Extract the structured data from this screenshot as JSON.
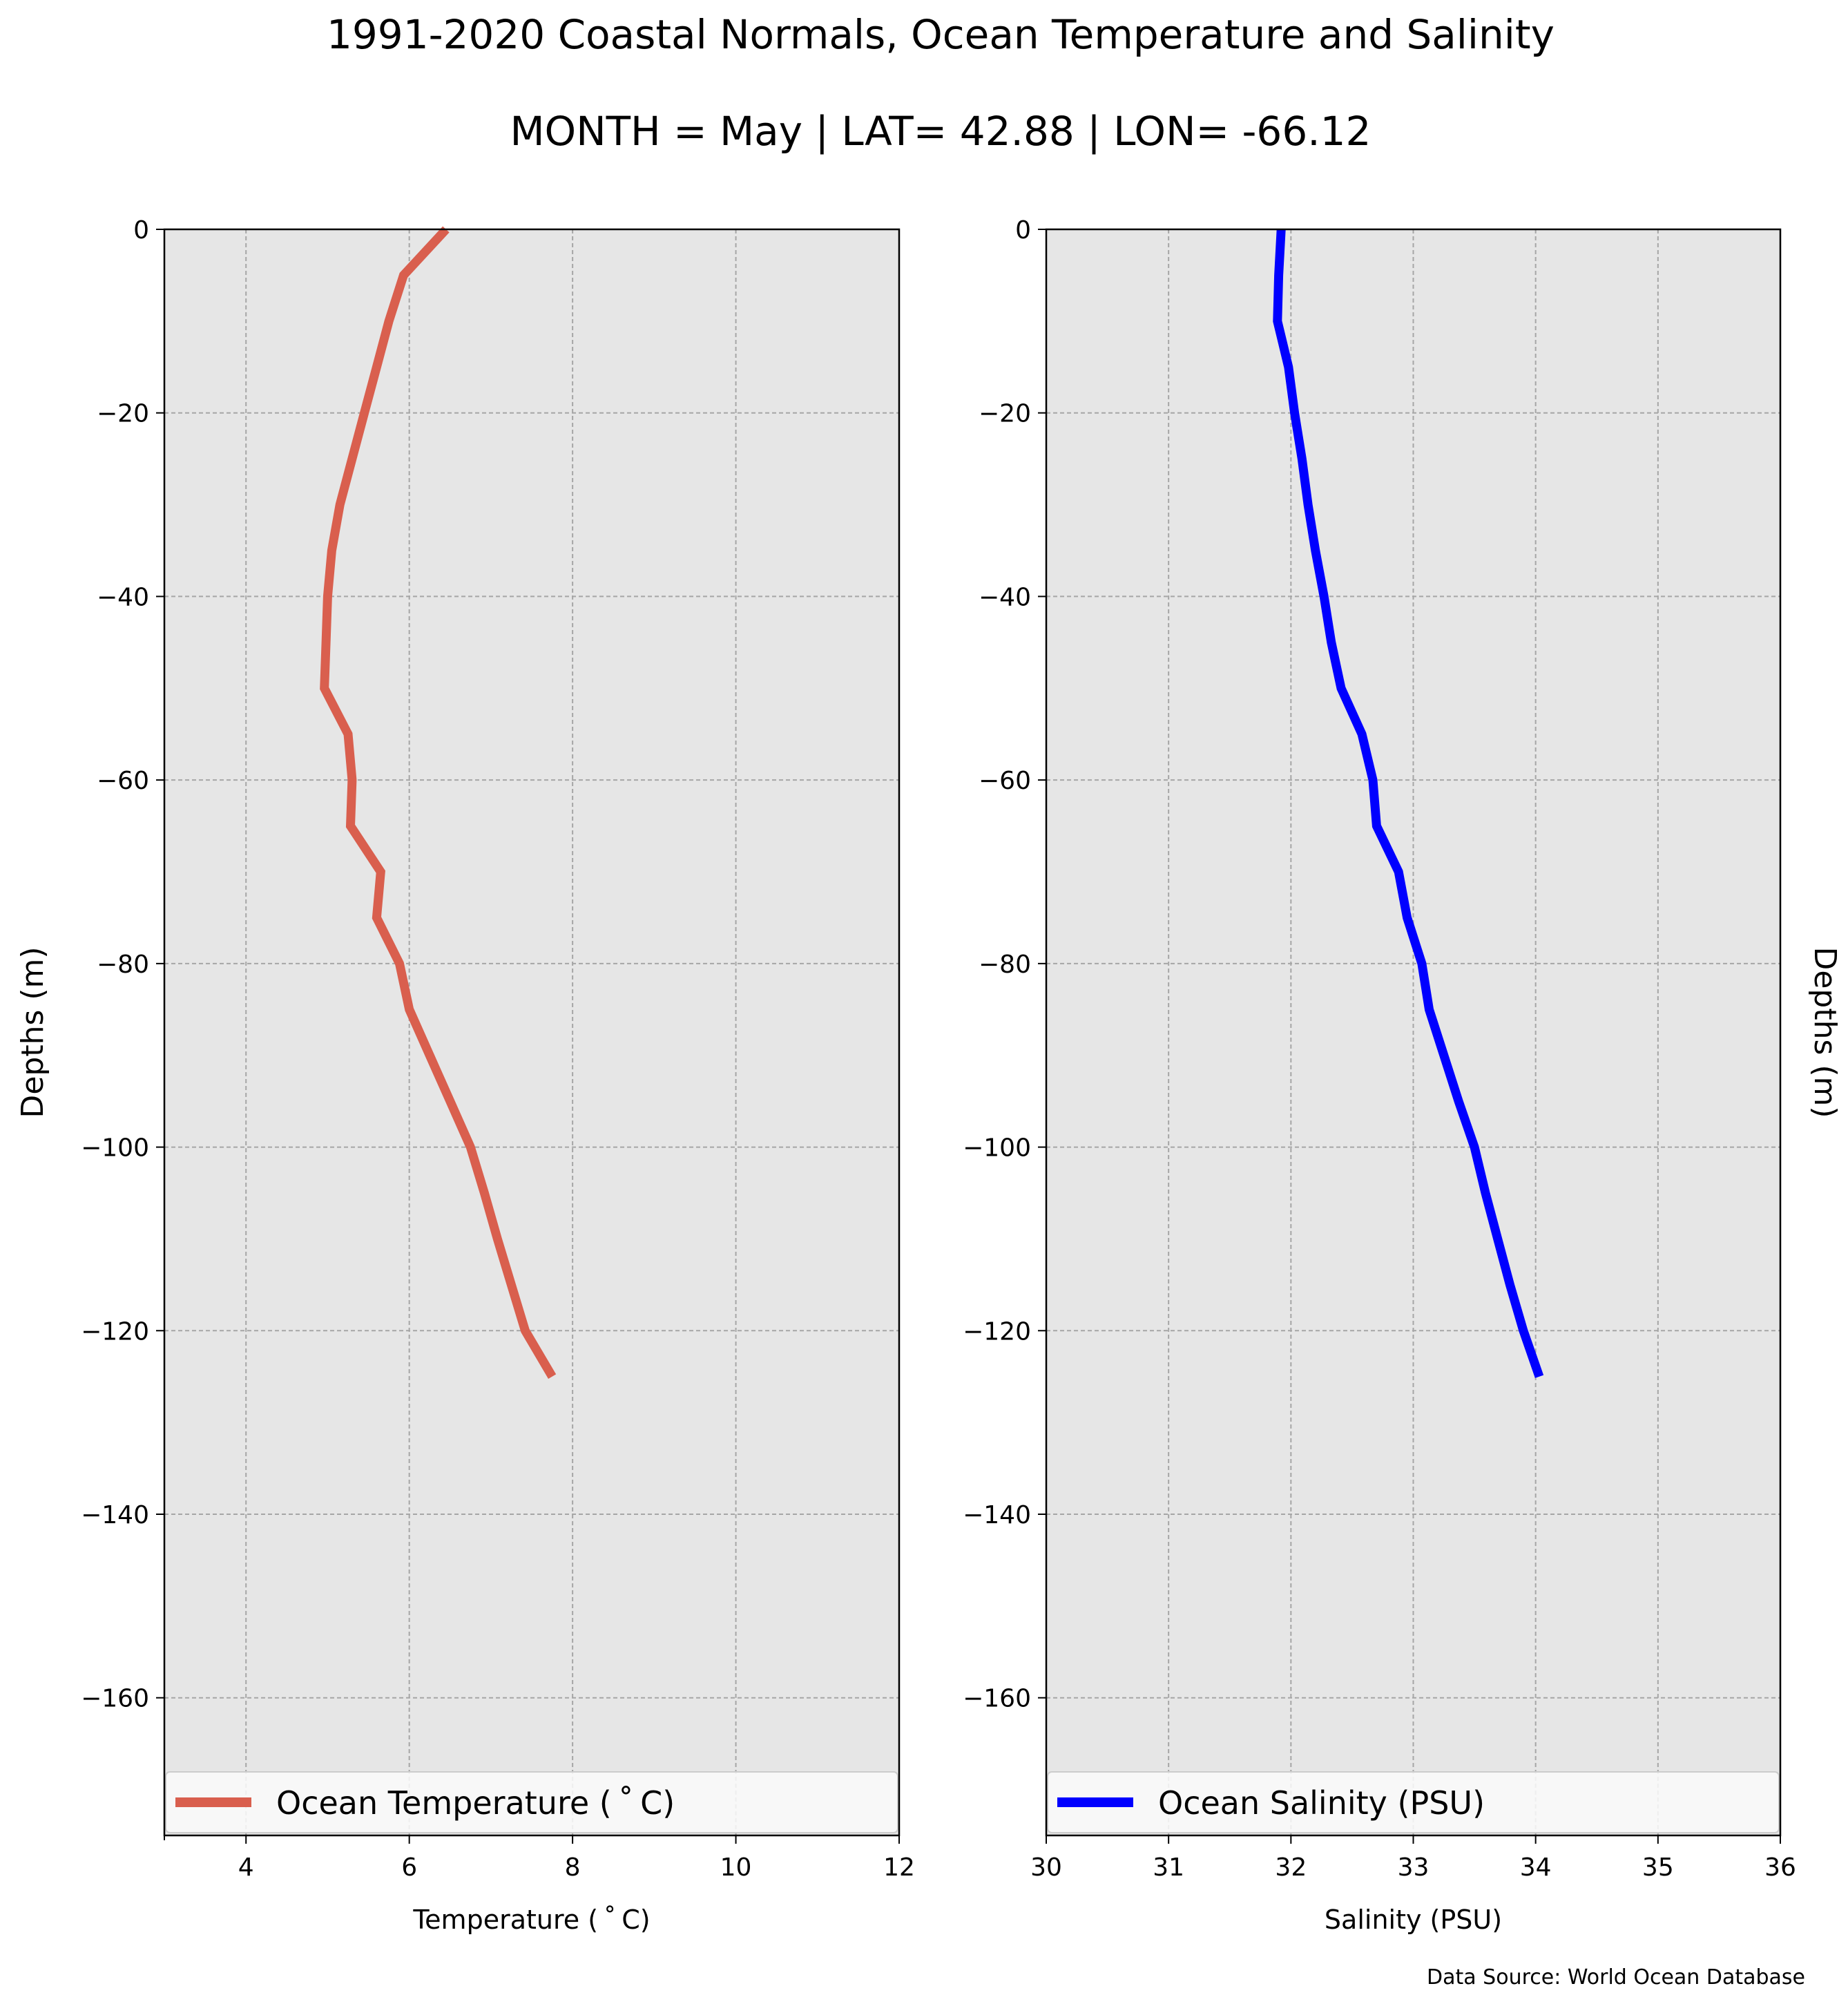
{
  "figure": {
    "title_line1": "1991-2020 Coastal Normals, Ocean Temperature and Salinity",
    "title_line2": "MONTH = May | LAT= 42.88 | LON= -66.12",
    "source": "Data Source: World Ocean Database",
    "background": "#e6e6e6"
  },
  "chart_data": [
    {
      "type": "line",
      "xlabel": "Temperature ($^\\circ$C)",
      "xlabel_display": "Temperature ( ˚ C)",
      "ylabel": "Depths (m)",
      "ylabel_side": "left",
      "xlim": [
        3,
        12
      ],
      "ylim": [
        -175,
        0
      ],
      "xticks": [
        4,
        6,
        8,
        10,
        12
      ],
      "xtick_labels": [
        "4",
        "6",
        "8",
        "10",
        "12"
      ],
      "minor_xticks": [
        3
      ],
      "yticks": [
        0,
        -20,
        -40,
        -60,
        -80,
        -100,
        -120,
        -140,
        -160
      ],
      "ytick_labels": [
        "0",
        "−20",
        "−40",
        "−60",
        "−80",
        "−100",
        "−120",
        "−140",
        "−160"
      ],
      "grid": true,
      "legend_position": "bottom-full-width",
      "series": [
        {
          "name": "Ocean Temperature ($^\\circ$C)",
          "legend_label": "Ocean Temperature ( ˚ C)",
          "color": "#d95f4e",
          "depth": [
            0,
            -5,
            -10,
            -15,
            -20,
            -25,
            -30,
            -35,
            -40,
            -45,
            -50,
            -55,
            -60,
            -65,
            -70,
            -75,
            -80,
            -85,
            -90,
            -95,
            -100,
            -105,
            -110,
            -115,
            -120,
            -125
          ],
          "values": [
            6.45,
            5.93,
            5.75,
            5.6,
            5.45,
            5.3,
            5.15,
            5.05,
            5.0,
            4.98,
            4.96,
            5.25,
            5.3,
            5.28,
            5.65,
            5.6,
            5.88,
            6.0,
            6.25,
            6.5,
            6.75,
            6.92,
            7.08,
            7.25,
            7.42,
            7.75
          ]
        }
      ]
    },
    {
      "type": "line",
      "xlabel": "Salinity (PSU)",
      "ylabel": "Depths (m)",
      "ylabel_side": "right",
      "xlim": [
        30,
        36
      ],
      "ylim": [
        -175,
        0
      ],
      "xticks": [
        30,
        31,
        32,
        33,
        34,
        35,
        36
      ],
      "xtick_labels": [
        "30",
        "31",
        "32",
        "33",
        "34",
        "35",
        "36"
      ],
      "yticks": [
        0,
        -20,
        -40,
        -60,
        -80,
        -100,
        -120,
        -140,
        -160
      ],
      "ytick_labels": [
        "0",
        "−20",
        "−40",
        "−60",
        "−80",
        "−100",
        "−120",
        "−140",
        "−160"
      ],
      "grid": true,
      "legend_position": "bottom-full-width",
      "series": [
        {
          "name": "Ocean Salinity (PSU)",
          "color": "#0000ff",
          "depth": [
            0,
            -5,
            -10,
            -15,
            -20,
            -25,
            -30,
            -35,
            -40,
            -45,
            -50,
            -55,
            -60,
            -65,
            -70,
            -75,
            -80,
            -85,
            -90,
            -95,
            -100,
            -105,
            -110,
            -115,
            -120,
            -125
          ],
          "values": [
            31.92,
            31.9,
            31.89,
            31.98,
            32.03,
            32.09,
            32.14,
            32.2,
            32.27,
            32.33,
            32.41,
            32.58,
            32.67,
            32.7,
            32.88,
            32.95,
            33.07,
            33.13,
            33.25,
            33.37,
            33.5,
            33.59,
            33.69,
            33.79,
            33.9,
            34.03
          ]
        }
      ]
    }
  ]
}
